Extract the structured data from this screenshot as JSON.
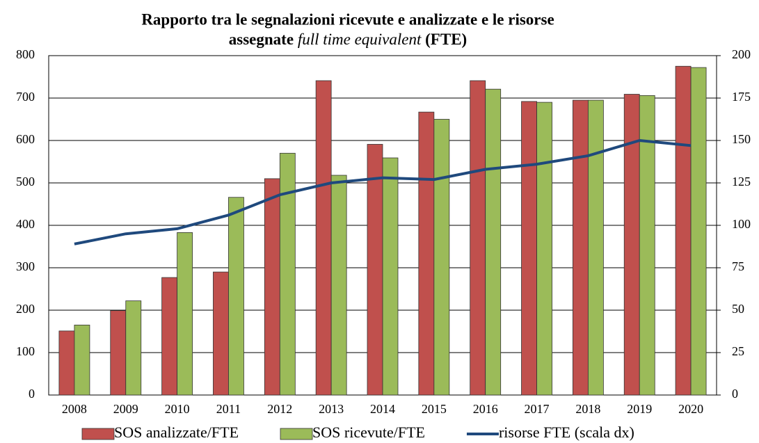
{
  "chart_data": {
    "type": "bar",
    "title": [
      "Rapporto tra le segnalazioni ricevute e analizzate e le risorse",
      "assegnate",
      "full time equivalent",
      "(FTE)"
    ],
    "categories": [
      "2008",
      "2009",
      "2010",
      "2011",
      "2012",
      "2013",
      "2014",
      "2015",
      "2016",
      "2017",
      "2018",
      "2019",
      "2020"
    ],
    "series": [
      {
        "name": "SOS analizzate/FTE",
        "color": "#c0504d",
        "type": "bar",
        "values": [
          151,
          199,
          277,
          290,
          510,
          741,
          591,
          667,
          741,
          692,
          695,
          709,
          775
        ]
      },
      {
        "name": "SOS ricevute/FTE",
        "color": "#9bbb59",
        "type": "bar",
        "values": [
          165,
          222,
          383,
          466,
          570,
          518,
          559,
          650,
          721,
          690,
          695,
          706,
          772
        ]
      },
      {
        "name": "risorse FTE (scala dx)",
        "color": "#1f497d",
        "type": "line",
        "axis": "y2",
        "values": [
          89,
          95,
          98,
          106,
          118,
          125,
          128,
          127,
          133,
          136,
          141,
          150,
          147
        ]
      }
    ],
    "ylim": [
      0,
      800
    ],
    "yticks": [
      0,
      100,
      200,
      300,
      400,
      500,
      600,
      700,
      800
    ],
    "y2lim": [
      0,
      200
    ],
    "y2ticks": [
      0,
      25,
      50,
      75,
      100,
      125,
      150,
      175,
      200
    ],
    "grid": true,
    "legend": "bottom"
  }
}
